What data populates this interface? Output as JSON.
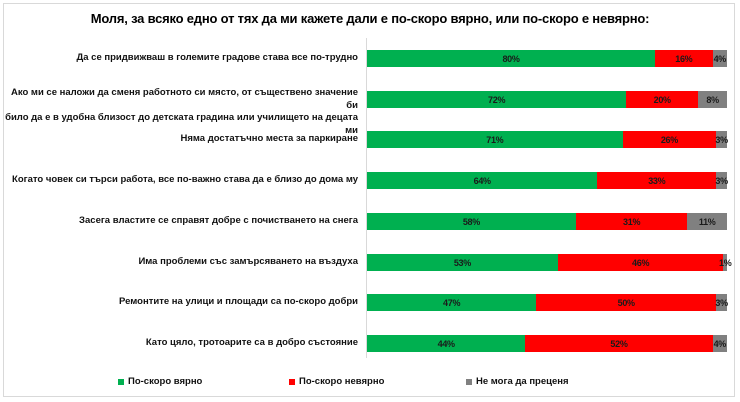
{
  "chart_data": {
    "type": "bar",
    "orientation": "horizontal",
    "stacked": true,
    "percent_stacked": true,
    "title": "Моля, за всяко едно от тях да ми кажете дали е по-скоро вярно, или по-скоро е невярно:",
    "xlabel": "",
    "ylabel": "",
    "xlim": [
      0,
      100
    ],
    "grid": false,
    "legend_position": "bottom",
    "data_labels": true,
    "categories": [
      "Да се придвижваш в големите градове става все по-трудно",
      "Ако ми се наложи да сменя работното си място, от съществено значение би било да е в удобна близост до детската градина или училището на децата ми",
      "Няма достатъчно места за паркиране",
      "Когато човек си търси работа, все по-важно става да е близо до дома му",
      "Засега властите се справят добре с почистването на снега",
      "Има проблеми със замърсяването на въздуха",
      "Ремонтите на улици и площади са по-скоро добри",
      "Като цяло, тротоарите са в добро състояние"
    ],
    "series": [
      {
        "name": "По-скоро вярно",
        "color": "#00b050",
        "values": [
          80,
          72,
          71,
          64,
          58,
          53,
          47,
          44
        ]
      },
      {
        "name": "По-скоро невярно",
        "color": "#ff0000",
        "values": [
          16,
          20,
          26,
          33,
          31,
          46,
          50,
          52
        ]
      },
      {
        "name": "Не мога да преценя",
        "color": "#808080",
        "values": [
          4,
          8,
          3,
          3,
          11,
          1,
          3,
          4
        ]
      }
    ]
  },
  "title": "Моля, за всяко едно от тях да ми кажете дали е по-скоро вярно, или по-скоро е невярно:",
  "rows": [
    {
      "label_lines": [
        "Да се придвижваш в големите градове става все по-трудно"
      ],
      "true": "80%",
      "false": "16%",
      "unsure": "4%"
    },
    {
      "label_lines": [
        "Ако ми се наложи да сменя работното си място, от съществено значение би",
        "било да е в удобна близост до детската градина или училището на децата ми"
      ],
      "true": "72%",
      "false": "20%",
      "unsure": "8%"
    },
    {
      "label_lines": [
        "Няма достатъчно места за паркиране"
      ],
      "true": "71%",
      "false": "26%",
      "unsure": "3%"
    },
    {
      "label_lines": [
        "Когато човек си търси работа, все по-важно става да е близо до дома му"
      ],
      "true": "64%",
      "false": "33%",
      "unsure": "3%"
    },
    {
      "label_lines": [
        "Засега властите се справят добре с почистването на снега"
      ],
      "true": "58%",
      "false": "31%",
      "unsure": "11%"
    },
    {
      "label_lines": [
        "Има проблеми със замърсяването на въздуха"
      ],
      "true": "53%",
      "false": "46%",
      "unsure": "1%"
    },
    {
      "label_lines": [
        "Ремонтите на улици и площади са по-скоро добри"
      ],
      "true": "47%",
      "false": "50%",
      "unsure": "3%"
    },
    {
      "label_lines": [
        "Като цяло, тротоарите са в добро състояние"
      ],
      "true": "44%",
      "false": "52%",
      "unsure": "4%"
    }
  ],
  "legend": [
    {
      "label": "По-скоро вярно",
      "color": "#00b050"
    },
    {
      "label": "По-скоро невярно",
      "color": "#ff0000"
    },
    {
      "label": "Не мога да преценя",
      "color": "#808080"
    }
  ]
}
